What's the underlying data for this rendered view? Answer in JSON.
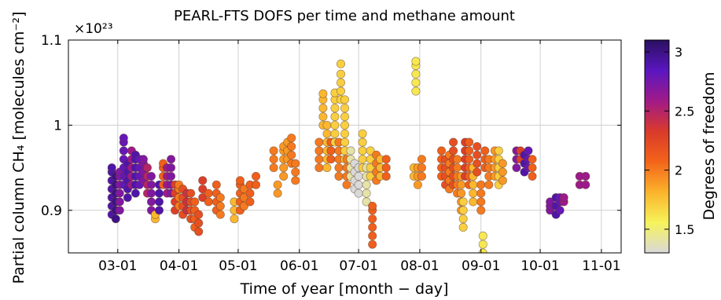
{
  "chart_data": {
    "type": "scatter",
    "title": "PEARL-FTS DOFS per time and methane amount",
    "xlabel": "Time of year [month − day]",
    "ylabel": "Partial column CH₄ [molecules cm⁻²]",
    "y_multiplier": "×10²³",
    "x_ticks": [
      "03-01",
      "04-01",
      "05-01",
      "06-01",
      "07-01",
      "08-01",
      "09-01",
      "10-01",
      "11-01"
    ],
    "x_tick_days": [
      60,
      91,
      121,
      152,
      182,
      213,
      244,
      274,
      305
    ],
    "xlim_day": [
      35,
      315
    ],
    "y_ticks": [
      "0.9",
      "1",
      "1.1"
    ],
    "y_tick_values": [
      0.9,
      1.0,
      1.1
    ],
    "ylim": [
      0.85,
      1.1
    ],
    "grid": true,
    "colorbar": {
      "label": "Degrees of freedom",
      "ticks": [
        "1.5",
        "2",
        "2.5",
        "3"
      ],
      "tick_values": [
        1.5,
        2.0,
        2.5,
        3.0
      ],
      "range": [
        1.3,
        3.1
      ],
      "colormap_stops": [
        "#d9d9d9",
        "#f6f35a",
        "#fbb32c",
        "#f3641a",
        "#d93a2b",
        "#a11a88",
        "#5a16c0",
        "#2a1060"
      ]
    },
    "clusters": [
      {
        "day": 57,
        "y": [
          0.895,
          0.905,
          0.915,
          0.925,
          0.935,
          0.945,
          0.95
        ],
        "dofs": 2.9
      },
      {
        "day": 59,
        "y": [
          0.89,
          0.9,
          0.91,
          0.92,
          0.93,
          0.94
        ],
        "dofs": 3.0
      },
      {
        "day": 61,
        "y": [
          0.9,
          0.91,
          0.92,
          0.93,
          0.94,
          0.945
        ],
        "dofs": 2.7
      },
      {
        "day": 63,
        "y": [
          0.93,
          0.94,
          0.95,
          0.96,
          0.97,
          0.98,
          0.985
        ],
        "dofs": 2.8
      },
      {
        "day": 65,
        "y": [
          0.915,
          0.925,
          0.935,
          0.945,
          0.955
        ],
        "dofs": 2.9
      },
      {
        "day": 67,
        "y": [
          0.93,
          0.94,
          0.95,
          0.96,
          0.97
        ],
        "dofs": 2.6
      },
      {
        "day": 69,
        "y": [
          0.92,
          0.93,
          0.94,
          0.95,
          0.96,
          0.965
        ],
        "dofs": 2.9
      },
      {
        "day": 71,
        "y": [
          0.93,
          0.94,
          0.95,
          0.96
        ],
        "dofs": 2.8
      },
      {
        "day": 73,
        "y": [
          0.935,
          0.945,
          0.955,
          0.96
        ],
        "dofs": 2.7
      },
      {
        "day": 75,
        "y": [
          0.92,
          0.93,
          0.94,
          0.95
        ],
        "dofs": 2.5
      },
      {
        "day": 77,
        "y": [
          0.9,
          0.91,
          0.92,
          0.93,
          0.94
        ],
        "dofs": 2.7
      },
      {
        "day": 79,
        "y": [
          0.89,
          0.895
        ],
        "dofs": 1.8
      },
      {
        "day": 81,
        "y": [
          0.9,
          0.91,
          0.92,
          0.93
        ],
        "dofs": 2.9
      },
      {
        "day": 83,
        "y": [
          0.93,
          0.94,
          0.95,
          0.955
        ],
        "dofs": 2.1
      },
      {
        "day": 85,
        "y": [
          0.92,
          0.93,
          0.94,
          0.95
        ],
        "dofs": 2.6
      },
      {
        "day": 87,
        "y": [
          0.92,
          0.93,
          0.94,
          0.95,
          0.96
        ],
        "dofs": 2.7
      },
      {
        "day": 89,
        "y": [
          0.9,
          0.91,
          0.92,
          0.93
        ],
        "dofs": 2.3
      },
      {
        "day": 91,
        "y": [
          0.905,
          0.915,
          0.925,
          0.93
        ],
        "dofs": 2.0
      },
      {
        "day": 93,
        "y": [
          0.895,
          0.905,
          0.915,
          0.925
        ],
        "dofs": 2.2
      },
      {
        "day": 95,
        "y": [
          0.9,
          0.91,
          0.92
        ],
        "dofs": 2.4
      },
      {
        "day": 97,
        "y": [
          0.89,
          0.9,
          0.91,
          0.92
        ],
        "dofs": 2.2
      },
      {
        "day": 99,
        "y": [
          0.88,
          0.89,
          0.9,
          0.91
        ],
        "dofs": 2.1
      },
      {
        "day": 101,
        "y": [
          0.875,
          0.885,
          0.895
        ],
        "dofs": 2.2
      },
      {
        "day": 103,
        "y": [
          0.915,
          0.925,
          0.935
        ],
        "dofs": 2.3
      },
      {
        "day": 106,
        "y": [
          0.91,
          0.92
        ],
        "dofs": 2.1
      },
      {
        "day": 110,
        "y": [
          0.9,
          0.91,
          0.92,
          0.93
        ],
        "dofs": 2.1
      },
      {
        "day": 112,
        "y": [
          0.895,
          0.905,
          0.915
        ],
        "dofs": 2.0
      },
      {
        "day": 119,
        "y": [
          0.89,
          0.9,
          0.91
        ],
        "dofs": 1.8
      },
      {
        "day": 122,
        "y": [
          0.9,
          0.91,
          0.92,
          0.93,
          0.935
        ],
        "dofs": 2.1
      },
      {
        "day": 124,
        "y": [
          0.905,
          0.915,
          0.925
        ],
        "dofs": 2.0
      },
      {
        "day": 127,
        "y": [
          0.91,
          0.92,
          0.93
        ],
        "dofs": 2.1
      },
      {
        "day": 130,
        "y": [
          0.93,
          0.94
        ],
        "dofs": 2.1
      },
      {
        "day": 139,
        "y": [
          0.95,
          0.96,
          0.97
        ],
        "dofs": 2.0
      },
      {
        "day": 141,
        "y": [
          0.92,
          0.93
        ],
        "dofs": 1.9
      },
      {
        "day": 144,
        "y": [
          0.94,
          0.95,
          0.96,
          0.97,
          0.975
        ],
        "dofs": 1.9
      },
      {
        "day": 146,
        "y": [
          0.96,
          0.97,
          0.98
        ],
        "dofs": 1.9
      },
      {
        "day": 148,
        "y": [
          0.955,
          0.965,
          0.975,
          0.985
        ],
        "dofs": 2.0
      },
      {
        "day": 150,
        "y": [
          0.935,
          0.945,
          0.955
        ],
        "dofs": 2.0
      },
      {
        "day": 162,
        "y": [
          0.95,
          0.96,
          0.97,
          0.98
        ],
        "dofs": 2.0
      },
      {
        "day": 164,
        "y": [
          1.0,
          1.01,
          1.02,
          1.03,
          1.037
        ],
        "dofs": 1.8
      },
      {
        "day": 166,
        "y": [
          0.95,
          0.96,
          0.97,
          0.98,
          0.99,
          1.0
        ],
        "dofs": 1.8
      },
      {
        "day": 168,
        "y": [
          0.96,
          0.97,
          0.98
        ],
        "dofs": 2.1
      },
      {
        "day": 170,
        "y": [
          0.98,
          0.99,
          1.0,
          1.01,
          1.02,
          1.03,
          1.038
        ],
        "dofs": 1.7
      },
      {
        "day": 172,
        "y": [
          0.94,
          0.95,
          0.96,
          0.97,
          0.98
        ],
        "dofs": 2.0
      },
      {
        "day": 173,
        "y": [
          1.03,
          1.04,
          1.05,
          1.06,
          1.072
        ],
        "dofs": 1.7
      },
      {
        "day": 175,
        "y": [
          0.96,
          0.97,
          0.98,
          0.99,
          1.0,
          1.01,
          1.02,
          1.03
        ],
        "dofs": 1.7
      },
      {
        "day": 176,
        "y": [
          0.93,
          0.94,
          0.95,
          0.96
        ],
        "dofs": 2.0
      },
      {
        "day": 178,
        "y": [
          0.94,
          0.95,
          0.96,
          0.97
        ],
        "dofs": 1.4
      },
      {
        "day": 180,
        "y": [
          0.925,
          0.935,
          0.945,
          0.955
        ],
        "dofs": 1.3
      },
      {
        "day": 182,
        "y": [
          0.92,
          0.93,
          0.94,
          0.95
        ],
        "dofs": 1.3
      },
      {
        "day": 184,
        "y": [
          0.95,
          0.96,
          0.97,
          0.98,
          0.99
        ],
        "dofs": 1.7
      },
      {
        "day": 186,
        "y": [
          0.91,
          0.92,
          0.93,
          0.94,
          0.95
        ],
        "dofs": 1.4
      },
      {
        "day": 188,
        "y": [
          0.94,
          0.95,
          0.96,
          0.97
        ],
        "dofs": 1.7
      },
      {
        "day": 189,
        "y": [
          0.86,
          0.87,
          0.88,
          0.89,
          0.9,
          0.905
        ],
        "dofs": 2.1
      },
      {
        "day": 191,
        "y": [
          0.935,
          0.945,
          0.955,
          0.965
        ],
        "dofs": 2.0
      },
      {
        "day": 193,
        "y": [
          0.94,
          0.95,
          0.96
        ],
        "dofs": 1.8
      },
      {
        "day": 196,
        "y": [
          0.94,
          0.95,
          0.96
        ],
        "dofs": 2.1
      },
      {
        "day": 210,
        "y": [
          0.94,
          0.95
        ],
        "dofs": 1.8
      },
      {
        "day": 211,
        "y": [
          1.04,
          1.05,
          1.06,
          1.07,
          1.075
        ],
        "dofs": 1.6
      },
      {
        "day": 212,
        "y": [
          0.93,
          0.94,
          0.95
        ],
        "dofs": 1.9
      },
      {
        "day": 214,
        "y": [
          0.94,
          0.95,
          0.96
        ],
        "dofs": 2.0
      },
      {
        "day": 224,
        "y": [
          0.94,
          0.95,
          0.96,
          0.97
        ],
        "dofs": 2.1
      },
      {
        "day": 226,
        "y": [
          0.93,
          0.94,
          0.95,
          0.96
        ],
        "dofs": 2.2
      },
      {
        "day": 228,
        "y": [
          0.925,
          0.935,
          0.945,
          0.955,
          0.965
        ],
        "dofs": 2.0
      },
      {
        "day": 230,
        "y": [
          0.93,
          0.94,
          0.95,
          0.96,
          0.97,
          0.98
        ],
        "dofs": 2.2
      },
      {
        "day": 232,
        "y": [
          0.92,
          0.93,
          0.94,
          0.95,
          0.96
        ],
        "dofs": 2.0
      },
      {
        "day": 234,
        "y": [
          0.9,
          0.91,
          0.92,
          0.93,
          0.94
        ],
        "dofs": 1.9
      },
      {
        "day": 235,
        "y": [
          0.88,
          0.89,
          0.9,
          0.91
        ],
        "dofs": 1.7
      },
      {
        "day": 236,
        "y": [
          0.94,
          0.95,
          0.96,
          0.97,
          0.98
        ],
        "dofs": 2.3
      },
      {
        "day": 238,
        "y": [
          0.93,
          0.94,
          0.95,
          0.96,
          0.97,
          0.98
        ],
        "dofs": 2.1
      },
      {
        "day": 240,
        "y": [
          0.91,
          0.92,
          0.93,
          0.94,
          0.95
        ],
        "dofs": 1.8
      },
      {
        "day": 242,
        "y": [
          0.945,
          0.955,
          0.965,
          0.975
        ],
        "dofs": 2.2
      },
      {
        "day": 244,
        "y": [
          0.9,
          0.91,
          0.92,
          0.93
        ],
        "dofs": 2.0
      },
      {
        "day": 245,
        "y": [
          0.85,
          0.86,
          0.87
        ],
        "dofs": 1.6
      },
      {
        "day": 246,
        "y": [
          0.95,
          0.96,
          0.97
        ],
        "dofs": 2.1
      },
      {
        "day": 248,
        "y": [
          0.93,
          0.94,
          0.95,
          0.96
        ],
        "dofs": 2.0
      },
      {
        "day": 251,
        "y": [
          0.94,
          0.95,
          0.96,
          0.97
        ],
        "dofs": 1.9
      },
      {
        "day": 253,
        "y": [
          0.93,
          0.94,
          0.95,
          0.96,
          0.97
        ],
        "dofs": 1.7
      },
      {
        "day": 255,
        "y": [
          0.935,
          0.945,
          0.955
        ],
        "dofs": 1.9
      },
      {
        "day": 262,
        "y": [
          0.95,
          0.96,
          0.97
        ],
        "dofs": 2.7
      },
      {
        "day": 264,
        "y": [
          0.96,
          0.97
        ],
        "dofs": 2.3
      },
      {
        "day": 266,
        "y": [
          0.945,
          0.955,
          0.965
        ],
        "dofs": 2.9
      },
      {
        "day": 268,
        "y": [
          0.95,
          0.96,
          0.97
        ],
        "dofs": 2.8
      },
      {
        "day": 270,
        "y": [
          0.94,
          0.95,
          0.96
        ],
        "dofs": 2.1
      },
      {
        "day": 279,
        "y": [
          0.9,
          0.905,
          0.91
        ],
        "dofs": 2.7
      },
      {
        "day": 282,
        "y": [
          0.895,
          0.905,
          0.915
        ],
        "dofs": 2.9
      },
      {
        "day": 284,
        "y": [
          0.9,
          0.91,
          0.915
        ],
        "dofs": 2.8
      },
      {
        "day": 286,
        "y": [
          0.91,
          0.915
        ],
        "dofs": 2.6
      },
      {
        "day": 294,
        "y": [
          0.93,
          0.94
        ],
        "dofs": 2.6
      },
      {
        "day": 297,
        "y": [
          0.93,
          0.94
        ],
        "dofs": 2.6
      }
    ]
  }
}
